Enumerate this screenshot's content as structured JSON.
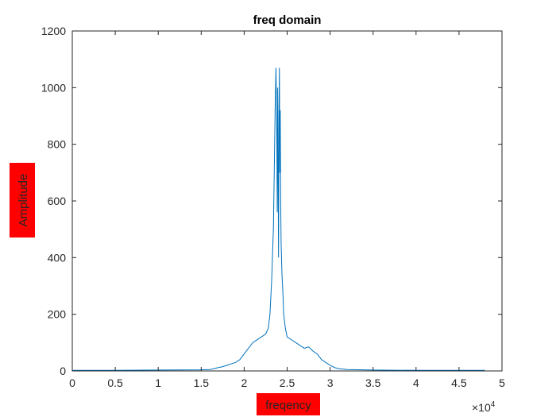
{
  "chart_data": {
    "type": "line",
    "title": "freq domain",
    "xlabel": "freqency",
    "ylabel": "Amplitude",
    "x_exponent_label": "×10",
    "x_exponent_power": "4",
    "xlim": [
      0,
      5
    ],
    "ylim": [
      0,
      1200
    ],
    "x_ticks": [
      0,
      0.5,
      1,
      1.5,
      2,
      2.5,
      3,
      3.5,
      4,
      4.5,
      5
    ],
    "x_tick_labels": [
      "0",
      "0.5",
      "1",
      "1.5",
      "2",
      "2.5",
      "3",
      "3.5",
      "4",
      "4.5",
      "5"
    ],
    "y_ticks": [
      0,
      200,
      400,
      600,
      800,
      1000,
      1200
    ],
    "y_tick_labels": [
      "0",
      "200",
      "400",
      "600",
      "800",
      "1000",
      "1200"
    ],
    "label_highlight_color": "#ff0000",
    "line_color": "#0072bd",
    "grid": false,
    "series": [
      {
        "x": [
          0,
          0.5,
          1.0,
          1.5,
          1.6,
          1.65,
          1.7,
          1.75,
          1.8,
          1.85,
          1.9,
          1.95,
          2.0,
          2.05,
          2.1,
          2.15,
          2.2,
          2.25,
          2.28,
          2.3,
          2.32,
          2.34,
          2.35,
          2.36,
          2.37,
          2.38,
          2.385,
          2.39,
          2.395,
          2.4,
          2.405,
          2.41,
          2.415,
          2.42,
          2.425,
          2.43,
          2.44,
          2.45,
          2.46,
          2.48,
          2.5,
          2.55,
          2.6,
          2.65,
          2.7,
          2.75,
          2.8,
          2.85,
          2.9,
          2.95,
          3.0,
          3.05,
          3.1,
          3.2,
          3.5,
          4.0,
          4.5,
          4.8
        ],
        "y": [
          2,
          2,
          3,
          4,
          5,
          8,
          12,
          15,
          20,
          25,
          30,
          40,
          60,
          80,
          100,
          110,
          120,
          130,
          150,
          200,
          320,
          500,
          700,
          920,
          1070,
          830,
          560,
          1000,
          700,
          400,
          900,
          1070,
          700,
          920,
          600,
          450,
          340,
          280,
          200,
          150,
          120,
          110,
          100,
          90,
          80,
          85,
          70,
          60,
          40,
          30,
          20,
          12,
          8,
          5,
          3,
          2,
          2,
          2
        ]
      }
    ]
  }
}
